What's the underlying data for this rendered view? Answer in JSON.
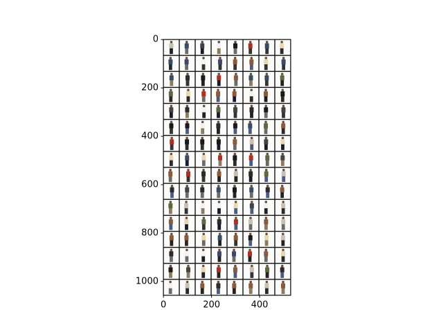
{
  "chart_data": {
    "type": "image",
    "xlim": [
      -0.5,
      529.5
    ],
    "ylim": [
      1057.5,
      -0.5
    ],
    "xticks": [
      0,
      200,
      400
    ],
    "yticks": [
      0,
      200,
      400,
      600,
      800,
      1000
    ]
  }
}
